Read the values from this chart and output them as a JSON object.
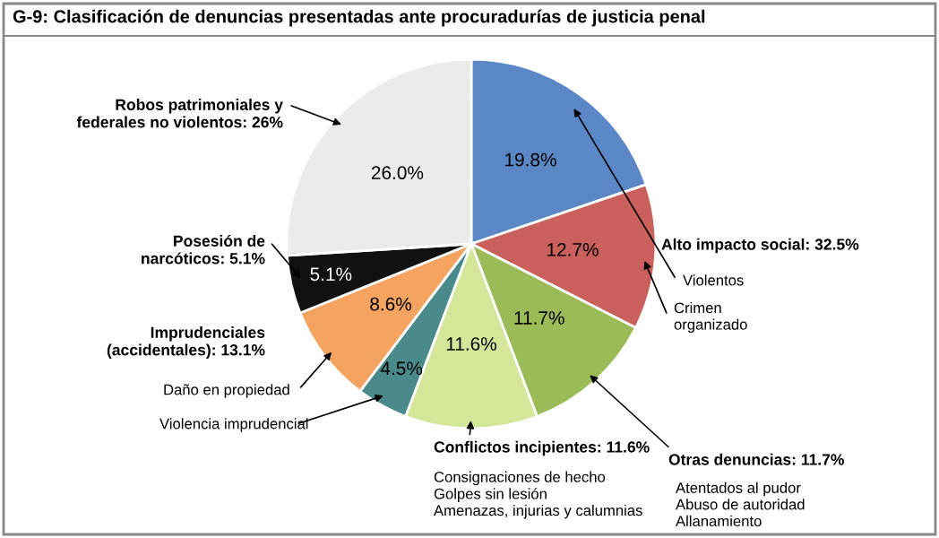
{
  "chart_data": {
    "type": "pie",
    "title": "G-9: Clasificación de denuncias presentadas ante procuradurías de justicia penal",
    "categories": [
      null,
      null,
      null,
      null,
      null,
      null,
      null,
      null
    ],
    "values": [
      19.8,
      12.7,
      11.7,
      11.6,
      4.5,
      8.6,
      5.1,
      26.0
    ],
    "value_labels": [
      "19.8%",
      "12.7%",
      "11.7%",
      "11.6%",
      "4.5%",
      "8.6%",
      "5.1%",
      "26.0%"
    ],
    "colors": [
      "#5b87c6",
      "#c9605c",
      "#9bbb59",
      "#d5e59a",
      "#4a8a8a",
      "#f4a460",
      "#111111",
      "#ebebeb"
    ],
    "legend": false,
    "annotations": [
      "Alto impacto social: 32.5%",
      "Violentos",
      "Crimen\norganizado",
      "Otras denuncias: 11.7%",
      "Atentados al pudor\nAbuso de autoridad\nAllanamiento",
      "Conflictos incipientes: 11.6%",
      "Consignaciones de hecho\nGolpes sin lesión\nAmenazas, injurias y calumnias",
      "Imprudenciales\n(accidentales): 13.1%",
      "Daño en propiedad",
      "Violencia imprudencial",
      "Posesión de\nnarcóticos: 5.1%",
      "Robos patrimoniales y\nfederales no violentos: 26%"
    ]
  }
}
